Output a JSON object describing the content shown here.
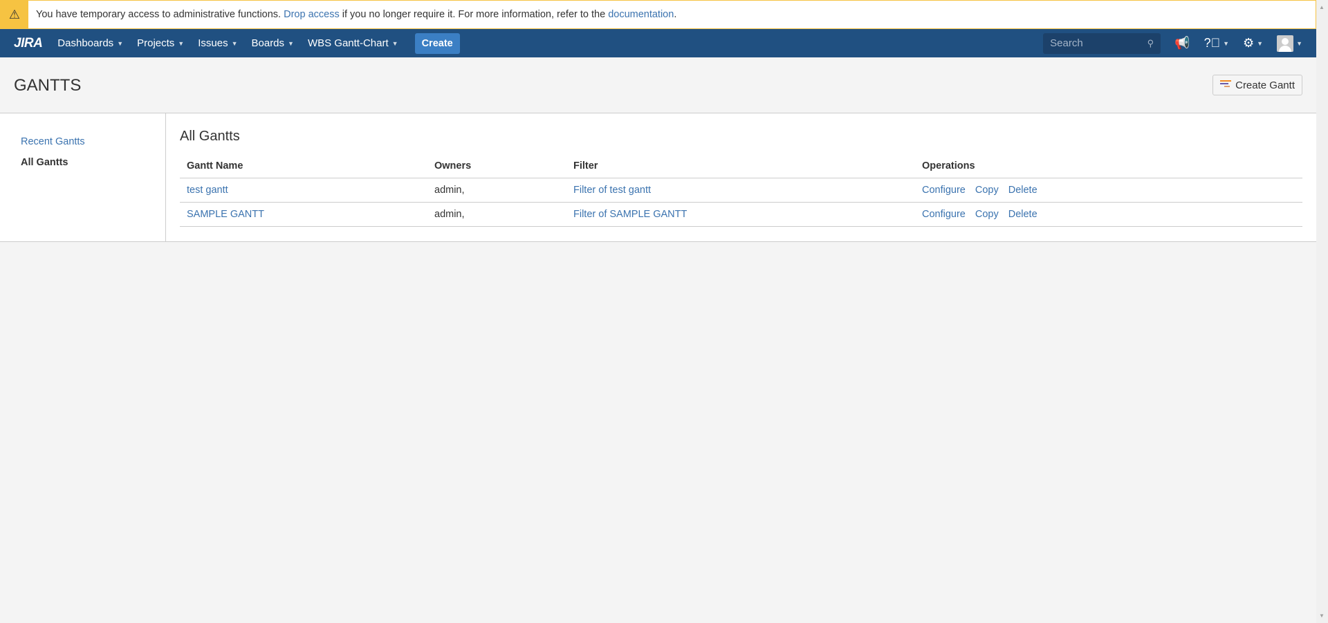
{
  "banner": {
    "text1": "You have temporary access to administrative functions. ",
    "link1": "Drop access",
    "text2": " if you no longer require it. For more information, refer to the ",
    "link2": "documentation",
    "text3": "."
  },
  "nav": {
    "logo": "JIRA",
    "items": [
      "Dashboards",
      "Projects",
      "Issues",
      "Boards",
      "WBS Gantt-Chart"
    ],
    "create": "Create",
    "search_placeholder": "Search"
  },
  "page": {
    "title": "GANTTS",
    "create_gantt": "Create Gantt"
  },
  "sidebar": {
    "items": [
      "Recent Gantts",
      "All Gantts"
    ],
    "active": "All Gantts"
  },
  "main": {
    "heading": "All Gantts",
    "columns": [
      "Gantt Name",
      "Owners",
      "Filter",
      "Operations"
    ],
    "rows": [
      {
        "name": "test gantt",
        "owners": "admin,",
        "filter": "Filter of test gantt",
        "ops": [
          "Configure",
          "Copy",
          "Delete"
        ]
      },
      {
        "name": "SAMPLE GANTT",
        "owners": "admin,",
        "filter": "Filter of SAMPLE GANTT",
        "ops": [
          "Configure",
          "Copy",
          "Delete"
        ]
      }
    ]
  },
  "colors": {
    "nav": "#205081",
    "warning": "#f6c342",
    "link": "#3b73af",
    "create_button": "#3b7fc4"
  }
}
